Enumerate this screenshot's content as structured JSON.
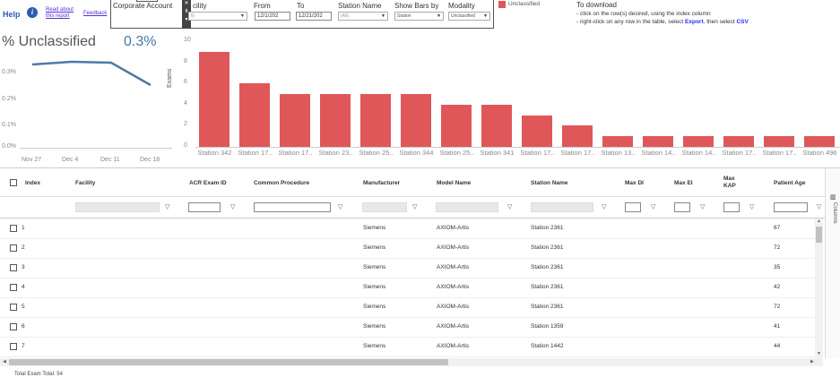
{
  "header": {
    "help": "Help",
    "read_about": "Read about this report",
    "feedback": "Feedback"
  },
  "filters": {
    "corporate_account_label": "Corporate Account",
    "facility_label": "cility",
    "facility_value": "ll)",
    "from_label": "From",
    "from_value": "12/1/202",
    "to_label": "To",
    "to_value": "12/21/202",
    "station_name_label": "Station Name",
    "station_name_value": "(All)",
    "show_bars_by_label": "Show Bars by",
    "show_bars_by_value": "Station",
    "modality_label": "Modality",
    "modality_value": "Unclassified"
  },
  "legend": {
    "label": "Unclassified",
    "color": "#e05759"
  },
  "download": {
    "title": "To download",
    "line1": "- click on the row(s) desired, using the index column",
    "line2_prefix": "- right-click on any row in the table, select ",
    "line2_export": "Export",
    "line2_middle": ", then select ",
    "line2_csv": "CSV"
  },
  "kpi": {
    "title": "% Unclassified",
    "value": "0.3%"
  },
  "line_chart": {
    "y_ticks": [
      "0.3%",
      "0.2%",
      "0.1%",
      "0.0%"
    ],
    "x_ticks": [
      "Nov 27",
      "Dec 4",
      "Dec 11",
      "Dec 18"
    ]
  },
  "chart_data": {
    "type": "bar",
    "ylabel": "Exams",
    "ylim": [
      0,
      10
    ],
    "y_ticks": [
      "10",
      "8",
      "6",
      "4",
      "2",
      "0"
    ],
    "categories": [
      "Station 342",
      "Station 17..",
      "Station 17..",
      "Station 23..",
      "Station 25..",
      "Station 344",
      "Station 25..",
      "Station 341",
      "Station 17..",
      "Station 17..",
      "Station 13..",
      "Station 14..",
      "Station 14..",
      "Station 17..",
      "Station 17..",
      "Station 496"
    ],
    "values": [
      9,
      6,
      5,
      5,
      5,
      5,
      4,
      4,
      3,
      2,
      1,
      1,
      1,
      1,
      1,
      1
    ],
    "color": "#e05759"
  },
  "table": {
    "columns": [
      "Index",
      "Facility",
      "ACR Exam ID",
      "Common Procedure",
      "Manufacturer",
      "Model Name",
      "Station Name",
      "Max DI",
      "Max EI",
      "Max KAP",
      "Patient Age"
    ],
    "rows": [
      {
        "index": "1",
        "manufacturer": "Siemens",
        "model": "AXIOM-Artis",
        "station": "Station 2361",
        "age": "67"
      },
      {
        "index": "2",
        "manufacturer": "Siemens",
        "model": "AXIOM-Artis",
        "station": "Station 2361",
        "age": "72"
      },
      {
        "index": "3",
        "manufacturer": "Siemens",
        "model": "AXIOM-Artis",
        "station": "Station 2361",
        "age": "35"
      },
      {
        "index": "4",
        "manufacturer": "Siemens",
        "model": "AXIOM-Artis",
        "station": "Station 2361",
        "age": "42"
      },
      {
        "index": "5",
        "manufacturer": "Siemens",
        "model": "AXIOM-Artis",
        "station": "Station 2361",
        "age": "72"
      },
      {
        "index": "6",
        "manufacturer": "Siemens",
        "model": "AXIOM-Artis",
        "station": "Station 1359",
        "age": "41"
      },
      {
        "index": "7",
        "manufacturer": "Siemens",
        "model": "AXIOM-Artis",
        "station": "Station 1442",
        "age": "44"
      }
    ],
    "columns_panel": "Columns",
    "footer": "Total Exam Total: 54"
  }
}
